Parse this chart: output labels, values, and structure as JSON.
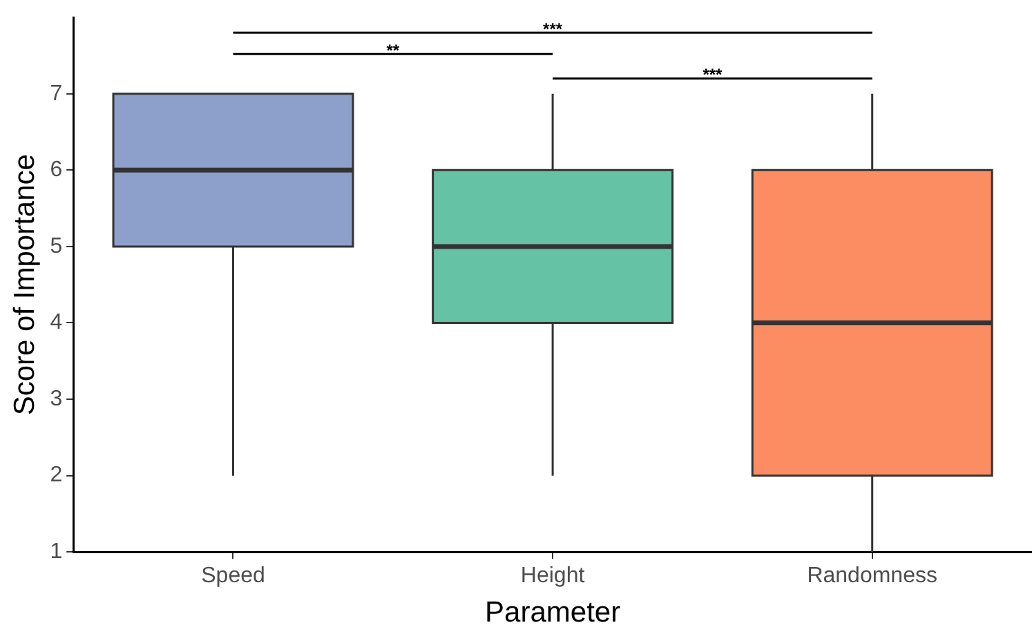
{
  "chart_data": {
    "type": "box",
    "xlabel": "Parameter",
    "ylabel": "Score of Importance",
    "categories": [
      "Speed",
      "Height",
      "Randomness"
    ],
    "colors": [
      "#8da0cb",
      "#66c2a5",
      "#fc8d62"
    ],
    "boxes": [
      {
        "low": 2,
        "q1": 5,
        "median": 6,
        "q3": 7,
        "high": 7
      },
      {
        "low": 2,
        "q1": 4,
        "median": 5,
        "q3": 6,
        "high": 7
      },
      {
        "low": 1,
        "q1": 2,
        "median": 4,
        "q3": 6,
        "high": 7
      }
    ],
    "ylim": [
      1,
      8
    ],
    "yticks": [
      1,
      2,
      3,
      4,
      5,
      6,
      7
    ],
    "annotations": [
      "***",
      "**",
      "***"
    ]
  }
}
